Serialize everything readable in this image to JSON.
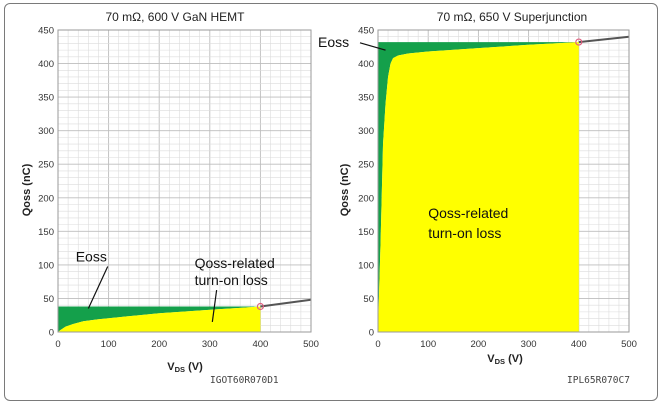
{
  "chart_data": [
    {
      "type": "area",
      "title": "70 mΩ, 600 V GaN HEMT",
      "ylabel": "Qoss (nC)",
      "xlabel_main": "V",
      "xlabel_sub": "DS",
      "xlabel_unit": " (V)",
      "part_number": "IGOT60R070D1",
      "xlim": [
        0,
        500
      ],
      "ylim": [
        0,
        450
      ],
      "xticks": [
        "0",
        "100",
        "200",
        "300",
        "400",
        "500"
      ],
      "yticks": [
        "0",
        "50",
        "100",
        "150",
        "200",
        "250",
        "300",
        "350",
        "400",
        "450"
      ],
      "grid": true,
      "operating_voltage": 400,
      "qoss_curve": {
        "x": [
          0,
          5,
          15,
          30,
          50,
          80,
          120,
          160,
          200,
          240,
          280,
          320,
          360,
          400
        ],
        "y": [
          0,
          3,
          8,
          12,
          16,
          19,
          22,
          25,
          28,
          30,
          32,
          34,
          36,
          38
        ]
      },
      "qoss_at_operating": 38,
      "extension_line": {
        "x": [
          400,
          500
        ],
        "y": [
          38,
          48
        ]
      },
      "annotations": [
        {
          "text": "Eoss",
          "x": 35,
          "y": 105,
          "arrow_to": [
            60,
            35
          ]
        },
        {
          "text": "Qoss-related",
          "x": 270,
          "y": 95
        },
        {
          "text": "turn-on loss",
          "x": 270,
          "y": 70,
          "arrow_to": [
            305,
            15
          ]
        }
      ],
      "colors": {
        "eoss": "#14a04b",
        "turn_on_loss": "#ffff00",
        "curve": "#555555",
        "marker": "#e06080"
      }
    },
    {
      "type": "area",
      "title": "70 mΩ, 650 V Superjunction",
      "ylabel": "Qoss (nC)",
      "xlabel_main": "V",
      "xlabel_sub": "DS",
      "xlabel_unit": " (V)",
      "part_number": "IPL65R070C7",
      "xlim": [
        0,
        500
      ],
      "ylim": [
        0,
        450
      ],
      "xticks": [
        "0",
        "100",
        "200",
        "300",
        "400",
        "500"
      ],
      "yticks": [
        "0",
        "50",
        "100",
        "150",
        "200",
        "250",
        "300",
        "350",
        "400",
        "450"
      ],
      "grid": true,
      "operating_voltage": 400,
      "qoss_curve": {
        "x": [
          0,
          3,
          5,
          8,
          10,
          15,
          20,
          25,
          30,
          40,
          60,
          100,
          200,
          300,
          400
        ],
        "y": [
          0,
          80,
          130,
          220,
          280,
          340,
          380,
          400,
          408,
          412,
          415,
          418,
          423,
          428,
          432
        ]
      },
      "qoss_at_operating": 432,
      "extension_line": {
        "x": [
          400,
          500
        ],
        "y": [
          432,
          440
        ]
      },
      "annotations": [
        {
          "text": "Eoss",
          "x": -100,
          "y": 425,
          "arrow_to": [
            15,
            420
          ]
        },
        {
          "text": "Qoss-related",
          "x": 100,
          "y": 170
        },
        {
          "text": "turn-on loss",
          "x": 100,
          "y": 140
        }
      ],
      "colors": {
        "eoss": "#14a04b",
        "turn_on_loss": "#ffff00",
        "curve": "#555555",
        "marker": "#e06080"
      }
    }
  ]
}
